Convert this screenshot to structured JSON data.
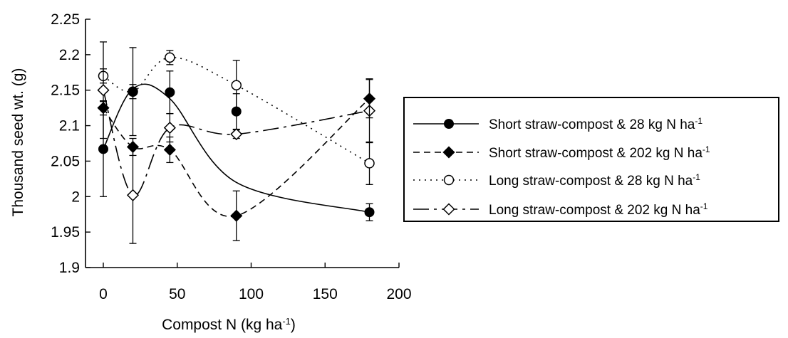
{
  "chart_data": {
    "type": "line",
    "title": "",
    "xlabel": "Compost N (kg ha",
    "xlabel_sup": "-1",
    "xlabel_end": ")",
    "ylabel": "Thousand seed wt. (g)",
    "xlim": [
      0,
      200
    ],
    "ylim": [
      1.9,
      2.25
    ],
    "x_ticks": [
      0,
      50,
      100,
      150,
      200
    ],
    "y_ticks": [
      1.9,
      1.95,
      2,
      2.05,
      2.1,
      2.15,
      2.2,
      2.25
    ],
    "y_tick_labels": [
      "1.9",
      "1.95",
      "2",
      "2.05",
      "2.1",
      "2.15",
      "2.2",
      "2.25"
    ],
    "grid": false,
    "legend_position": "right",
    "series": [
      {
        "name": "Short straw-compost & 28 kg N ha",
        "name_sup": "-1",
        "marker": "filled-circle",
        "line_style": "solid",
        "x": [
          0,
          20,
          45,
          90,
          180
        ],
        "y": [
          2.067,
          2.148,
          2.147,
          2.12,
          1.978
        ],
        "err": [
          0.067,
          0.062,
          0.03,
          0.025,
          0.012
        ],
        "fit": [
          2.067,
          2.152,
          2.138,
          2.02,
          1.978
        ]
      },
      {
        "name": "Short straw-compost & 202 kg N ha",
        "name_sup": "-1",
        "marker": "filled-diamond",
        "line_style": "dashed",
        "x": [
          0,
          20,
          45,
          90,
          180
        ],
        "y": [
          2.125,
          2.07,
          2.066,
          1.973,
          2.138
        ],
        "err": [
          0.01,
          0.012,
          0.018,
          0.035,
          0.027
        ],
        "fit": [
          2.125,
          2.07,
          2.066,
          1.973,
          2.138
        ]
      },
      {
        "name": "Long straw-compost & 28 kg  N ha",
        "name_sup": "-1",
        "marker": "open-circle",
        "line_style": "dotted",
        "x": [
          0,
          20,
          45,
          90,
          180
        ],
        "y": [
          2.17,
          2.148,
          2.196,
          2.157,
          2.047
        ],
        "err": [
          0.01,
          0.01,
          0.01,
          0.035,
          0.03
        ],
        "fit": [
          2.17,
          2.148,
          2.196,
          2.157,
          2.047
        ]
      },
      {
        "name": "Long straw-compost & 202 kg N ha",
        "name_sup": "-1",
        "marker": "open-diamond",
        "line_style": "long-dash",
        "x": [
          0,
          20,
          45,
          90,
          180
        ],
        "y": [
          2.15,
          2.002,
          2.097,
          2.088,
          2.121
        ],
        "err": [
          0.068,
          0.068,
          0.02,
          0.006,
          0.045
        ],
        "fit": [
          2.15,
          2.002,
          2.097,
          2.088,
          2.121
        ]
      }
    ]
  }
}
